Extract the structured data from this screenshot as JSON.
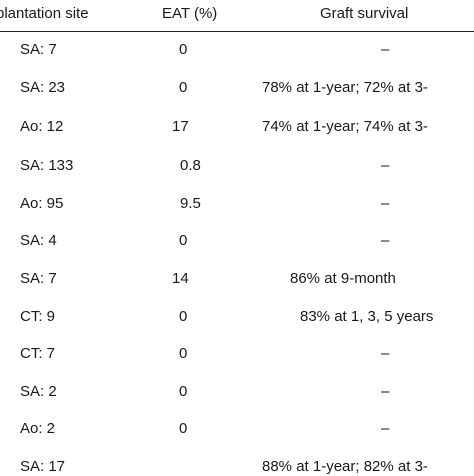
{
  "table": {
    "headers": {
      "site": "plantation site",
      "eat": "EAT (%)",
      "survival": "Graft survival"
    },
    "rows": [
      {
        "site": "SA: 7",
        "eat": "0",
        "survival": "–"
      },
      {
        "site": "SA: 23",
        "eat": "0",
        "survival": "78% at 1-year; 72% at 3-"
      },
      {
        "site": "Ao: 12",
        "eat": "17",
        "survival": "74% at 1-year; 74% at 3-"
      },
      {
        "site": "SA: 133",
        "eat": "0.8",
        "survival": "–"
      },
      {
        "site": "Ao: 95",
        "eat": "9.5",
        "survival": "–"
      },
      {
        "site": "SA: 4",
        "eat": "0",
        "survival": "–"
      },
      {
        "site": "SA: 7",
        "eat": "14",
        "survival": "86% at 9-month"
      },
      {
        "site": "CT: 9",
        "eat": "0",
        "survival": "83% at 1, 3, 5 years"
      },
      {
        "site": "CT: 7",
        "eat": "0",
        "survival": "–"
      },
      {
        "site": "SA: 2",
        "eat": "0",
        "survival": "–"
      },
      {
        "site": "Ao: 2",
        "eat": "0",
        "survival": "–"
      },
      {
        "site": "SA: 17",
        "eat": "",
        "survival": "88% at 1-year; 82% at 3-"
      }
    ]
  }
}
